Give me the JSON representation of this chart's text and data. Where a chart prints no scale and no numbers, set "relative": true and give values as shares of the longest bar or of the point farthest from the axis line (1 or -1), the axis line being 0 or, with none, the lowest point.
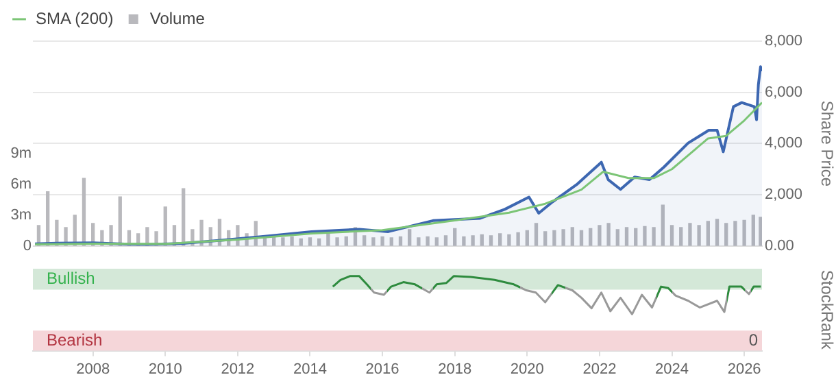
{
  "chart_data": [
    {
      "type": "line",
      "legend": "top left",
      "grid": "y",
      "tick_labels": "y",
      "y2label": "Share Price",
      "xlim": [
        2006.34,
        2026.49
      ],
      "xticks": [
        2008,
        2010,
        2012,
        2014,
        2016,
        2018,
        2020,
        2022,
        2024,
        2026
      ],
      "ylim": [
        0,
        20
      ],
      "yticks": [
        {
          "value": 0,
          "label": "0"
        },
        {
          "value": 3,
          "label": "3m"
        },
        {
          "value": 6,
          "label": "6m"
        },
        {
          "value": 9,
          "label": "9m"
        }
      ],
      "y2lim": [
        0,
        8000
      ],
      "y2ticks": [
        {
          "value": 0,
          "label": "0.00"
        },
        {
          "value": 2000,
          "label": "2,000"
        },
        {
          "value": 4000,
          "label": "4,000"
        },
        {
          "value": 6000,
          "label": "6,000"
        },
        {
          "value": 8000,
          "label": "8,000"
        }
      ],
      "series": [
        {
          "type": "bar",
          "name": "Volume",
          "color": "#b9b9bd",
          "x": [
            2006.5,
            2006.75,
            2007.0,
            2007.25,
            2007.5,
            2007.75,
            2008.0,
            2008.25,
            2008.5,
            2008.75,
            2009.0,
            2009.25,
            2009.5,
            2009.75,
            2010.0,
            2010.25,
            2010.5,
            2010.75,
            2011.0,
            2011.25,
            2011.5,
            2011.75,
            2012.0,
            2012.25,
            2012.5,
            2012.75,
            2013.0,
            2013.25,
            2013.5,
            2013.75,
            2014.0,
            2014.25,
            2014.5,
            2014.75,
            2015.0,
            2015.25,
            2015.5,
            2015.75,
            2016.0,
            2016.25,
            2016.5,
            2016.75,
            2017.0,
            2017.25,
            2017.5,
            2017.75,
            2018.0,
            2018.25,
            2018.5,
            2018.75,
            2019.0,
            2019.25,
            2019.5,
            2019.75,
            2020.0,
            2020.25,
            2020.5,
            2020.75,
            2021.0,
            2021.25,
            2021.5,
            2021.75,
            2022.0,
            2022.25,
            2022.5,
            2022.75,
            2023.0,
            2023.25,
            2023.5,
            2023.75,
            2024.0,
            2024.25,
            2024.5,
            2024.75,
            2025.0,
            2025.25,
            2025.5,
            2025.75,
            2026.0,
            2026.25,
            2026.45
          ],
          "values": [
            2.0,
            5.3,
            2.5,
            1.8,
            3.0,
            6.6,
            2.2,
            1.5,
            2.0,
            4.8,
            1.5,
            1.2,
            1.8,
            1.4,
            3.8,
            2.0,
            5.6,
            1.6,
            2.5,
            1.8,
            2.6,
            1.5,
            2.0,
            1.2,
            2.4,
            1.0,
            1.0,
            0.8,
            0.9,
            0.7,
            0.8,
            0.7,
            1.2,
            0.8,
            0.9,
            1.8,
            1.0,
            0.8,
            0.9,
            0.8,
            0.9,
            1.6,
            0.8,
            0.9,
            0.8,
            1.0,
            1.7,
            0.9,
            1.0,
            1.1,
            1.0,
            1.2,
            1.1,
            1.3,
            1.5,
            2.2,
            1.4,
            1.5,
            1.6,
            1.8,
            1.5,
            1.7,
            2.0,
            2.2,
            1.6,
            1.8,
            1.7,
            1.9,
            1.8,
            4.0,
            2.0,
            1.8,
            2.2,
            2.0,
            2.4,
            2.6,
            2.2,
            2.4,
            2.5,
            3.0,
            2.8
          ]
        },
        {
          "type": "area",
          "axis": "y2",
          "color": "#3d67b1",
          "x": [
            2006.4,
            2007.0,
            2008.0,
            2009.0,
            2009.5,
            2010.5,
            2011.6,
            2012.7,
            2014.04,
            2015.36,
            2016.16,
            2017.4,
            2018.7,
            2019.38,
            2020.05,
            2020.32,
            2020.7,
            2021.37,
            2022.05,
            2022.24,
            2022.58,
            2022.97,
            2023.38,
            2023.78,
            2024.45,
            2025.02,
            2025.25,
            2025.42,
            2025.7,
            2025.93,
            2026.28,
            2026.34,
            2026.39,
            2026.45,
            2026.49
          ],
          "values": [
            80,
            110,
            120,
            70,
            60,
            100,
            230,
            370,
            560,
            650,
            560,
            990,
            1080,
            1430,
            1910,
            1280,
            1720,
            2400,
            3270,
            2590,
            2210,
            2690,
            2590,
            3080,
            4020,
            4520,
            4520,
            3680,
            5440,
            5600,
            5440,
            4930,
            6300,
            7000,
            6830
          ]
        },
        {
          "type": "line",
          "name": "SMA (200)",
          "axis": "y2",
          "color": "#7cc576",
          "x": [
            2006.4,
            2008,
            2010,
            2012,
            2014,
            2016,
            2018,
            2019.5,
            2020.5,
            2021.5,
            2022.1,
            2022.8,
            2023.5,
            2024,
            2024.5,
            2025,
            2025.5,
            2026,
            2026.49
          ],
          "values": [
            60,
            90,
            80,
            250,
            480,
            620,
            1000,
            1300,
            1650,
            2200,
            2900,
            2650,
            2650,
            3000,
            3600,
            4200,
            4300,
            4900,
            5600
          ]
        }
      ]
    },
    {
      "type": "line",
      "relative": true,
      "ylabel": "StockRank",
      "annotations": [
        "0"
      ],
      "xlim": [
        2006.34,
        2026.49
      ],
      "xticks": [
        2008,
        2010,
        2012,
        2014,
        2016,
        2018,
        2020,
        2022,
        2024,
        2026
      ],
      "bands": [
        {
          "axis": "y",
          "from": 0.82,
          "to": 1.1,
          "label": "Bullish",
          "color": "#d4e8d8"
        },
        {
          "axis": "y",
          "from": 0,
          "to": 0.27,
          "label": "Bearish",
          "color": "#f5d6d9"
        }
      ],
      "series": [
        {
          "color": "#999999",
          "x": [
            2014.63,
            2014.84,
            2015.1,
            2015.36,
            2015.57,
            2015.77,
            2016.04,
            2016.24,
            2016.58,
            2016.9,
            2017.3,
            2017.5,
            2017.77,
            2017.97,
            2018.44,
            2019.1,
            2019.63,
            2019.98,
            2020.24,
            2020.5,
            2020.85,
            2021.25,
            2021.5,
            2021.78,
            2022.05,
            2022.3,
            2022.58,
            2022.9,
            2023.17,
            2023.45,
            2023.7,
            2023.9,
            2024.1,
            2024.45,
            2024.77,
            2025.25,
            2025.45,
            2025.59,
            2025.92,
            2026.13,
            2026.26,
            2026.46
          ],
          "values": [
            0.86,
            0.95,
            1,
            1,
            0.89,
            0.78,
            0.75,
            0.86,
            0.92,
            0.89,
            0.78,
            0.89,
            0.91,
            1,
            0.99,
            0.95,
            0.89,
            0.81,
            0.78,
            0.65,
            0.88,
            0.81,
            0.71,
            0.57,
            0.78,
            0.53,
            0.71,
            0.49,
            0.75,
            0.58,
            0.86,
            0.84,
            0.74,
            0.67,
            0.58,
            0.67,
            0.52,
            0.86,
            0.86,
            0.76,
            0.86,
            0.86
          ],
          "colors": [
            "#2e8b3e",
            "#2e8b3e",
            "#2e8b3e",
            "#2e8b3e",
            "#2e8b3e",
            "#999999",
            "#999999",
            "#2e8b3e",
            "#2e8b3e",
            "#2e8b3e",
            "#999999",
            "#2e8b3e",
            "#2e8b3e",
            "#2e8b3e",
            "#2e8b3e",
            "#2e8b3e",
            "#2e8b3e",
            "#999999",
            "#999999",
            "#999999",
            "#2e8b3e",
            "#999999",
            "#999999",
            "#999999",
            "#999999",
            "#999999",
            "#999999",
            "#999999",
            "#999999",
            "#999999",
            "#2e8b3e",
            "#2e8b3e",
            "#999999",
            "#999999",
            "#999999",
            "#999999",
            "#999999",
            "#2e8b3e",
            "#2e8b3e",
            "#999999",
            "#2e8b3e",
            "#2e8b3e"
          ]
        }
      ]
    }
  ]
}
